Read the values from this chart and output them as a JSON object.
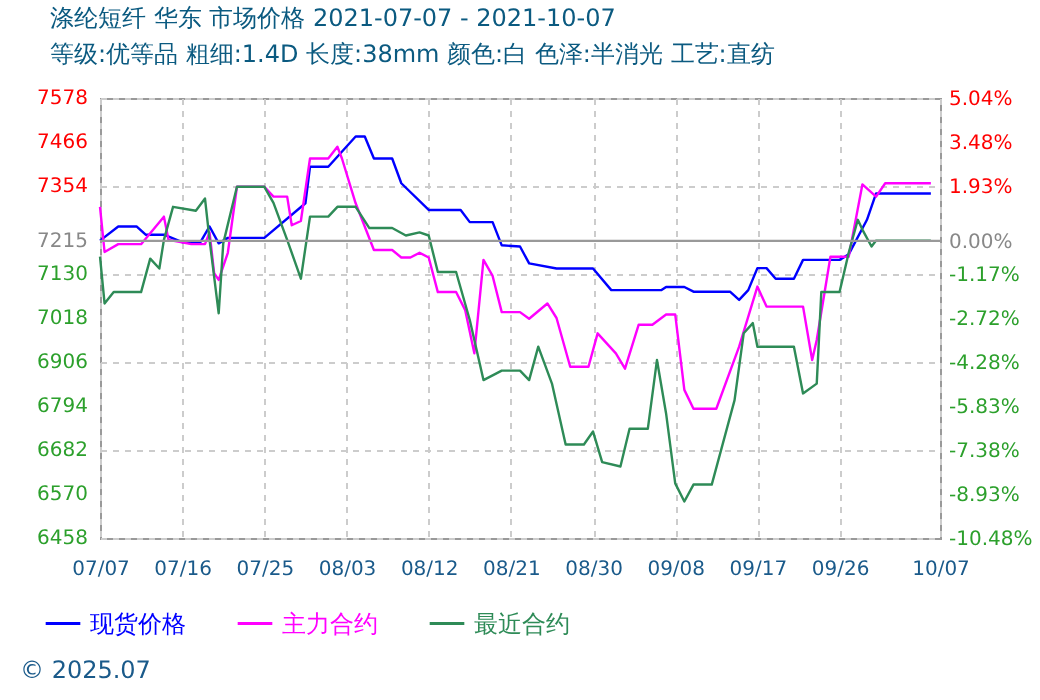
{
  "chart_data": {
    "type": "line",
    "title": "涤纶短纤 华东 市场价格 2021-07-07 - 2021-10-07",
    "subtitle": "等级:优等品 粗细:1.4D 长度:38mm 颜色:白 色泽:半消光 工艺:直纺",
    "annotations": [
      "© 2025.07"
    ],
    "xlim": [
      "2021-07-07",
      "2021-10-07"
    ],
    "xticks": [
      {
        "value": "2021-07-07",
        "label": "07/07"
      },
      {
        "value": "2021-07-16",
        "label": "07/16"
      },
      {
        "value": "2021-07-25",
        "label": "07/25"
      },
      {
        "value": "2021-08-03",
        "label": "08/03"
      },
      {
        "value": "2021-08-12",
        "label": "08/12"
      },
      {
        "value": "2021-08-21",
        "label": "08/21"
      },
      {
        "value": "2021-08-30",
        "label": "08/30"
      },
      {
        "value": "2021-09-08",
        "label": "09/08"
      },
      {
        "value": "2021-09-17",
        "label": "09/17"
      },
      {
        "value": "2021-09-26",
        "label": "09/26"
      },
      {
        "value": "2021-10-07",
        "label": "10/07"
      }
    ],
    "ylim": [
      6458,
      7578
    ],
    "yticks": [
      6458,
      6570,
      6682,
      6794,
      6906,
      7018,
      7130,
      7215,
      7354,
      7466,
      7578
    ],
    "y2lim": [
      -10.48,
      5.04
    ],
    "y2ticks": [
      {
        "value": -10.48,
        "label": "-10.48%"
      },
      {
        "value": -8.93,
        "label": "-8.93%"
      },
      {
        "value": -7.38,
        "label": "-7.38%"
      },
      {
        "value": -5.83,
        "label": "-5.83%"
      },
      {
        "value": -4.28,
        "label": "-4.28%"
      },
      {
        "value": -2.72,
        "label": "-2.72%"
      },
      {
        "value": -1.17,
        "label": "-1.17%"
      },
      {
        "value": 0,
        "label": "0.00%"
      },
      {
        "value": 1.93,
        "label": "1.93%"
      },
      {
        "value": 3.48,
        "label": "3.48%"
      },
      {
        "value": 5.04,
        "label": "5.04%"
      }
    ],
    "ref_lines": [
      {
        "axis": "y2",
        "value": 0,
        "color": "#999999"
      }
    ],
    "grid": true,
    "legend": "bottom",
    "marker": "none",
    "line_style": "solid",
    "series": [
      {
        "name": "现货价格",
        "color": "#0000ff",
        "x": [
          "2021-07-07",
          "2021-07-09",
          "2021-07-11",
          "2021-07-12",
          "2021-07-14",
          "2021-07-16",
          "2021-07-18",
          "2021-07-19",
          "2021-07-20",
          "2021-07-21",
          "2021-07-25",
          "2021-07-29T12:00",
          "2021-07-30",
          "2021-08-01",
          "2021-08-04",
          "2021-08-05",
          "2021-08-06",
          "2021-08-08",
          "2021-08-09",
          "2021-08-12",
          "2021-08-15T12:00",
          "2021-08-16T12:00",
          "2021-08-19",
          "2021-08-20",
          "2021-08-22",
          "2021-08-23",
          "2021-08-26",
          "2021-08-30",
          "2021-09-01",
          "2021-09-06T12:00",
          "2021-09-07",
          "2021-09-09",
          "2021-09-10",
          "2021-09-14",
          "2021-09-15",
          "2021-09-16",
          "2021-09-17",
          "2021-09-18",
          "2021-09-19",
          "2021-09-21",
          "2021-09-22",
          "2021-09-26",
          "2021-09-27",
          "2021-09-29",
          "2021-09-30",
          "2021-10-06"
        ],
        "values": [
          7215,
          7251,
          7251,
          7230,
          7230,
          7211,
          7211,
          7251,
          7208,
          7222,
          7222,
          7310,
          7403,
          7403,
          7480,
          7480,
          7424,
          7424,
          7361,
          7293,
          7293,
          7262,
          7262,
          7203,
          7200,
          7157,
          7144,
          7144,
          7089,
          7089,
          7097,
          7097,
          7085,
          7085,
          7064,
          7089,
          7145,
          7145,
          7118,
          7118,
          7166,
          7166,
          7180,
          7268,
          7335,
          7335
        ]
      },
      {
        "name": "主力合约",
        "color": "#ff00ff",
        "x": [
          "2021-07-07",
          "2021-07-07T12:00",
          "2021-07-09",
          "2021-07-11T12:00",
          "2021-07-14",
          "2021-07-14T12:00",
          "2021-07-17",
          "2021-07-18T12:00",
          "2021-07-19",
          "2021-07-19T12:00",
          "2021-07-20",
          "2021-07-21",
          "2021-07-22",
          "2021-07-25",
          "2021-07-26",
          "2021-07-27T12:00",
          "2021-07-28",
          "2021-07-29",
          "2021-07-30",
          "2021-08-01",
          "2021-08-02",
          "2021-08-02T12:00",
          "2021-08-04",
          "2021-08-06",
          "2021-08-08",
          "2021-08-09",
          "2021-08-10",
          "2021-08-11",
          "2021-08-12",
          "2021-08-13",
          "2021-08-15",
          "2021-08-16",
          "2021-08-17",
          "2021-08-18",
          "2021-08-19",
          "2021-08-20",
          "2021-08-22",
          "2021-08-23",
          "2021-08-25",
          "2021-08-26",
          "2021-08-27T12:00",
          "2021-08-29T12:00",
          "2021-08-30T12:00",
          "2021-09-01T12:00",
          "2021-09-02T12:00",
          "2021-09-04",
          "2021-09-05T12:00",
          "2021-09-07",
          "2021-09-08",
          "2021-09-09",
          "2021-09-10",
          "2021-09-12T12:00",
          "2021-09-15",
          "2021-09-17",
          "2021-09-18",
          "2021-09-22",
          "2021-09-23",
          "2021-09-23T12:00",
          "2021-09-25",
          "2021-09-27",
          "2021-09-28T12:00",
          "2021-09-30",
          "2021-10-01",
          "2021-10-06"
        ],
        "values": [
          7301,
          7186,
          7206,
          7206,
          7276,
          7217,
          7206,
          7206,
          7236,
          7132,
          7115,
          7184,
          7352,
          7352,
          7327,
          7327,
          7254,
          7265,
          7424,
          7424,
          7454,
          7424,
          7310,
          7191,
          7191,
          7172,
          7172,
          7184,
          7172,
          7084,
          7084,
          7038,
          6928,
          7166,
          7125,
          7033,
          7033,
          7016,
          7055,
          7018,
          6894,
          6894,
          6979,
          6928,
          6889,
          7001,
          7001,
          7027,
          7027,
          6835,
          6787,
          6787,
          6945,
          7098,
          7047,
          7047,
          6911,
          6962,
          7174,
          7174,
          7358,
          7327,
          7361,
          7361
        ]
      },
      {
        "name": "最近合约",
        "color": "#2e8b57",
        "x": [
          "2021-07-07",
          "2021-07-07T12:00",
          "2021-07-08T12:00",
          "2021-07-11T12:00",
          "2021-07-12T12:00",
          "2021-07-13T12:00",
          "2021-07-14",
          "2021-07-15",
          "2021-07-17T12:00",
          "2021-07-18T12:00",
          "2021-07-19",
          "2021-07-20",
          "2021-07-20T12:00",
          "2021-07-22",
          "2021-07-25",
          "2021-07-26",
          "2021-07-27T12:00",
          "2021-07-29",
          "2021-07-30",
          "2021-08-01",
          "2021-08-02",
          "2021-08-04",
          "2021-08-05T12:00",
          "2021-08-08",
          "2021-08-09T12:00",
          "2021-08-11",
          "2021-08-12",
          "2021-08-13",
          "2021-08-15",
          "2021-08-16T12:00",
          "2021-08-18",
          "2021-08-20",
          "2021-08-22",
          "2021-08-23",
          "2021-08-24",
          "2021-08-25T12:00",
          "2021-08-27",
          "2021-08-29",
          "2021-08-30",
          "2021-08-31",
          "2021-09-02",
          "2021-09-03",
          "2021-09-05",
          "2021-09-06",
          "2021-09-07",
          "2021-09-08",
          "2021-09-09",
          "2021-09-10",
          "2021-09-12",
          "2021-09-14T12:00",
          "2021-09-15T12:00",
          "2021-09-16T12:00",
          "2021-09-17",
          "2021-09-21",
          "2021-09-22",
          "2021-09-23T12:00",
          "2021-09-24",
          "2021-09-26",
          "2021-09-27",
          "2021-09-28",
          "2021-09-28T12:00",
          "2021-09-29T12:00",
          "2021-09-30",
          "2021-10-06"
        ],
        "values": [
          7174,
          7055,
          7084,
          7084,
          7169,
          7144,
          7217,
          7301,
          7291,
          7322,
          7217,
          7030,
          7208,
          7352,
          7352,
          7311,
          7217,
          7118,
          7276,
          7276,
          7301,
          7301,
          7247,
          7247,
          7228,
          7236,
          7228,
          7135,
          7135,
          7013,
          6860,
          6884,
          6884,
          6860,
          6945,
          6851,
          6696,
          6696,
          6729,
          6651,
          6640,
          6736,
          6736,
          6911,
          6775,
          6597,
          6551,
          6594,
          6594,
          6809,
          6979,
          7005,
          6945,
          6945,
          6826,
          6851,
          7084,
          7084,
          7184,
          7268,
          7243,
          7200,
          7215,
          7215
        ]
      }
    ]
  }
}
